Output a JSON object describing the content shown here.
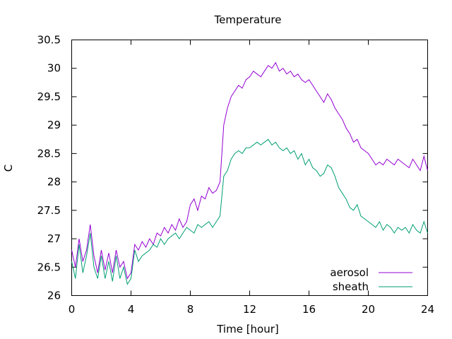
{
  "chart_data": {
    "type": "line",
    "title": "Temperature",
    "xlabel": "Time [hour]",
    "ylabel": "C",
    "xlim": [
      0,
      24
    ],
    "ylim": [
      26,
      30.5
    ],
    "x_ticks": [
      0,
      4,
      8,
      12,
      16,
      20,
      24
    ],
    "y_ticks": [
      26,
      26.5,
      27,
      27.5,
      28,
      28.5,
      29,
      29.5,
      30,
      30.5
    ],
    "grid": false,
    "legend_position": "bottom-right",
    "series": [
      {
        "name": "aerosol",
        "color": "#9400d3",
        "x": [
          0,
          0.25,
          0.5,
          0.75,
          1,
          1.25,
          1.5,
          1.75,
          2,
          2.25,
          2.5,
          2.75,
          3,
          3.25,
          3.5,
          3.75,
          4,
          4.25,
          4.5,
          4.75,
          5,
          5.25,
          5.5,
          5.75,
          6,
          6.25,
          6.5,
          6.75,
          7,
          7.25,
          7.5,
          7.75,
          8,
          8.25,
          8.5,
          8.75,
          9,
          9.25,
          9.5,
          9.75,
          10,
          10.25,
          10.5,
          10.75,
          11,
          11.25,
          11.5,
          11.75,
          12,
          12.25,
          12.5,
          12.75,
          13,
          13.25,
          13.5,
          13.75,
          14,
          14.25,
          14.5,
          14.75,
          15,
          15.25,
          15.5,
          15.75,
          16,
          16.25,
          16.5,
          16.75,
          17,
          17.25,
          17.5,
          17.75,
          18,
          18.25,
          18.5,
          18.75,
          19,
          19.25,
          19.5,
          19.75,
          20,
          20.25,
          20.5,
          20.75,
          21,
          21.25,
          21.5,
          21.75,
          22,
          22.25,
          22.5,
          22.75,
          23,
          23.25,
          23.5,
          23.75,
          24
        ],
        "y": [
          26.8,
          26.5,
          27.0,
          26.6,
          26.8,
          27.25,
          26.7,
          26.4,
          26.8,
          26.45,
          26.75,
          26.4,
          26.8,
          26.5,
          26.6,
          26.3,
          26.4,
          26.9,
          26.8,
          26.95,
          26.85,
          27.0,
          26.9,
          27.1,
          27.05,
          27.2,
          27.1,
          27.25,
          27.15,
          27.35,
          27.2,
          27.3,
          27.6,
          27.7,
          27.5,
          27.75,
          27.7,
          27.9,
          27.8,
          27.85,
          28.0,
          29.0,
          29.3,
          29.5,
          29.6,
          29.7,
          29.65,
          29.8,
          29.85,
          29.95,
          29.9,
          29.85,
          29.95,
          30.05,
          30.0,
          30.1,
          29.95,
          30.0,
          29.9,
          29.95,
          29.85,
          29.9,
          29.8,
          29.75,
          29.8,
          29.7,
          29.6,
          29.5,
          29.4,
          29.55,
          29.45,
          29.3,
          29.2,
          29.1,
          28.95,
          28.85,
          28.7,
          28.75,
          28.6,
          28.55,
          28.5,
          28.4,
          28.3,
          28.35,
          28.3,
          28.4,
          28.35,
          28.3,
          28.4,
          28.35,
          28.3,
          28.25,
          28.4,
          28.3,
          28.2,
          28.45,
          28.2
        ]
      },
      {
        "name": "sheath",
        "color": "#009e73",
        "x": [
          0,
          0.25,
          0.5,
          0.75,
          1,
          1.25,
          1.5,
          1.75,
          2,
          2.25,
          2.5,
          2.75,
          3,
          3.25,
          3.5,
          3.75,
          4,
          4.25,
          4.5,
          4.75,
          5,
          5.25,
          5.5,
          5.75,
          6,
          6.25,
          6.5,
          6.75,
          7,
          7.25,
          7.5,
          7.75,
          8,
          8.25,
          8.5,
          8.75,
          9,
          9.25,
          9.5,
          9.75,
          10,
          10.25,
          10.5,
          10.75,
          11,
          11.25,
          11.5,
          11.75,
          12,
          12.25,
          12.5,
          12.75,
          13,
          13.25,
          13.5,
          13.75,
          14,
          14.25,
          14.5,
          14.75,
          15,
          15.25,
          15.5,
          15.75,
          16,
          16.25,
          16.5,
          16.75,
          17,
          17.25,
          17.5,
          17.75,
          18,
          18.25,
          18.5,
          18.75,
          19,
          19.25,
          19.5,
          19.75,
          20,
          20.25,
          20.5,
          20.75,
          21,
          21.25,
          21.5,
          21.75,
          22,
          22.25,
          22.5,
          22.75,
          23,
          23.25,
          23.5,
          23.75,
          24
        ],
        "y": [
          26.6,
          26.3,
          26.9,
          26.4,
          26.7,
          27.1,
          26.5,
          26.3,
          26.7,
          26.3,
          26.6,
          26.25,
          26.7,
          26.3,
          26.5,
          26.2,
          26.3,
          26.8,
          26.6,
          26.7,
          26.75,
          26.8,
          26.9,
          26.85,
          27.0,
          26.9,
          27.0,
          27.05,
          27.1,
          27.0,
          27.1,
          27.2,
          27.15,
          27.1,
          27.25,
          27.2,
          27.25,
          27.3,
          27.2,
          27.3,
          27.4,
          28.1,
          28.2,
          28.4,
          28.5,
          28.55,
          28.5,
          28.6,
          28.6,
          28.65,
          28.7,
          28.65,
          28.7,
          28.75,
          28.65,
          28.7,
          28.6,
          28.55,
          28.6,
          28.5,
          28.55,
          28.4,
          28.5,
          28.3,
          28.4,
          28.25,
          28.2,
          28.1,
          28.15,
          28.3,
          28.25,
          28.1,
          27.9,
          27.8,
          27.7,
          27.55,
          27.5,
          27.6,
          27.4,
          27.35,
          27.3,
          27.25,
          27.2,
          27.3,
          27.15,
          27.25,
          27.2,
          27.1,
          27.2,
          27.15,
          27.2,
          27.1,
          27.25,
          27.15,
          27.1,
          27.3,
          27.1
        ]
      }
    ]
  }
}
